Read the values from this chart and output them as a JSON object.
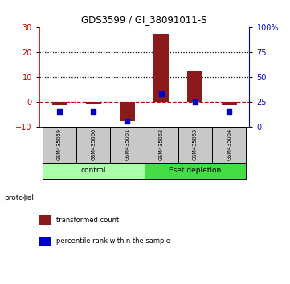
{
  "title": "GDS3599 / GI_38091011-S",
  "categories": [
    "GSM435059",
    "GSM435060",
    "GSM435061",
    "GSM435062",
    "GSM435063",
    "GSM435064"
  ],
  "bar_values": [
    -1.5,
    -1.0,
    -8.0,
    27.0,
    12.5,
    -1.5
  ],
  "blue_values_pct": [
    15.0,
    15.0,
    5.0,
    33.0,
    25.0,
    15.0
  ],
  "bar_color": "#8B1A1A",
  "blue_color": "#0000CD",
  "ylim_left": [
    -10,
    30
  ],
  "ylim_right": [
    0,
    100
  ],
  "yticks_left": [
    -10,
    0,
    10,
    20,
    30
  ],
  "yticks_right": [
    0,
    25,
    50,
    75,
    100
  ],
  "ytick_labels_right": [
    "0",
    "25",
    "50",
    "75",
    "100%"
  ],
  "left_tick_color": "#CC0000",
  "right_tick_color": "#0000CD",
  "protocol_groups": [
    {
      "label": "control",
      "start": 0,
      "end": 3,
      "color": "#AAFFAA"
    },
    {
      "label": "Eset depletion",
      "start": 3,
      "end": 6,
      "color": "#44DD44"
    }
  ],
  "legend_items": [
    {
      "color": "#8B1A1A",
      "label": "transformed count"
    },
    {
      "color": "#0000CD",
      "label": "percentile rank within the sample"
    }
  ],
  "bar_width": 0.45
}
